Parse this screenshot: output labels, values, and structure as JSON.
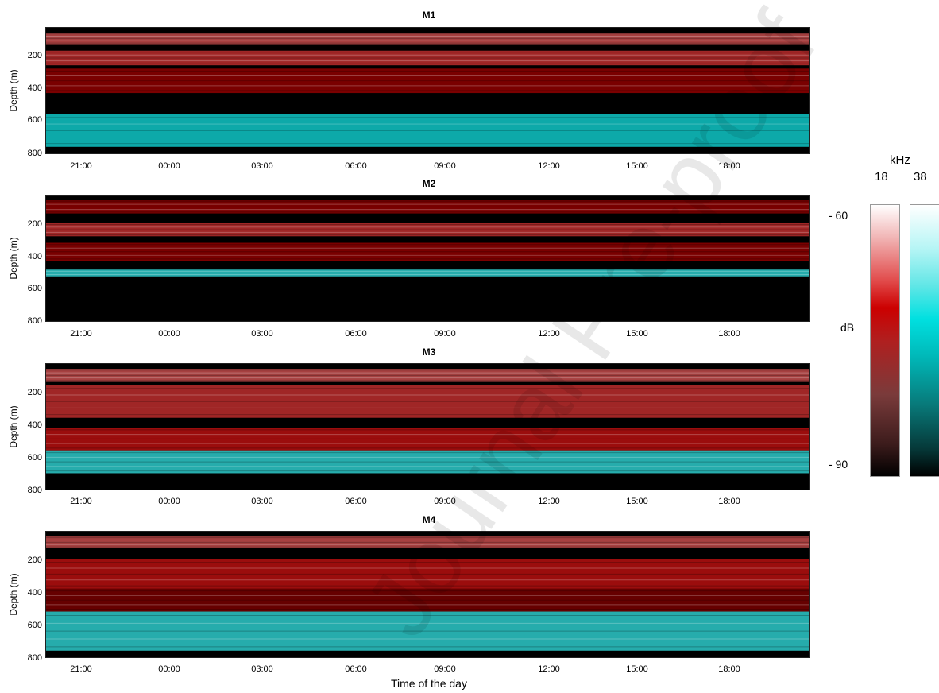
{
  "chart_data": [
    {
      "type": "heatmap",
      "title": "M1",
      "ylabel": "Depth (m)",
      "yticks": [
        "200",
        "400",
        "600",
        "800"
      ],
      "ylim": [
        800,
        30
      ],
      "xticks": [
        "21:00",
        "00:00",
        "03:00",
        "06:00",
        "09:00",
        "12:00",
        "15:00",
        "18:00"
      ],
      "bands": [
        {
          "channel": "18 kHz",
          "depth_top": 60,
          "depth_bottom": 130,
          "level_db": -70
        },
        {
          "channel": "18 kHz",
          "depth_top": 170,
          "depth_bottom": 260,
          "level_db": -72
        },
        {
          "channel": "18 kHz",
          "depth_top": 280,
          "depth_bottom": 430,
          "level_db": -78
        },
        {
          "channel": "38 kHz",
          "depth_top": 560,
          "depth_bottom": 760,
          "level_db": -74
        }
      ],
      "no_data_depth": [
        470,
        560
      ]
    },
    {
      "type": "heatmap",
      "title": "M2",
      "ylabel": "Depth (m)",
      "yticks": [
        "200",
        "400",
        "600",
        "800"
      ],
      "ylim": [
        800,
        30
      ],
      "xticks": [
        "21:00",
        "00:00",
        "03:00",
        "06:00",
        "09:00",
        "12:00",
        "15:00",
        "18:00"
      ],
      "bands": [
        {
          "channel": "18 kHz",
          "depth_top": 60,
          "depth_bottom": 140,
          "level_db": -78
        },
        {
          "channel": "18 kHz",
          "depth_top": 200,
          "depth_bottom": 280,
          "level_db": -72
        },
        {
          "channel": "18 kHz",
          "depth_top": 320,
          "depth_bottom": 430,
          "level_db": -78
        },
        {
          "channel": "38 kHz",
          "depth_top": 480,
          "depth_bottom": 530,
          "level_db": -72
        }
      ],
      "no_data_depth": [
        540,
        800
      ]
    },
    {
      "type": "heatmap",
      "title": "M3",
      "ylabel": "Depth (m)",
      "yticks": [
        "200",
        "400",
        "600",
        "800"
      ],
      "ylim": [
        800,
        30
      ],
      "xticks": [
        "21:00",
        "00:00",
        "03:00",
        "06:00",
        "09:00",
        "12:00",
        "15:00",
        "18:00"
      ],
      "bands": [
        {
          "channel": "18 kHz",
          "depth_top": 60,
          "depth_bottom": 140,
          "level_db": -70
        },
        {
          "channel": "18 kHz",
          "depth_top": 160,
          "depth_bottom": 360,
          "level_db": -72
        },
        {
          "channel": "18 kHz",
          "depth_top": 420,
          "depth_bottom": 560,
          "level_db": -74
        },
        {
          "channel": "38 kHz",
          "depth_top": 560,
          "depth_bottom": 700,
          "level_db": -72
        }
      ]
    },
    {
      "type": "heatmap",
      "title": "M4",
      "ylabel": "Depth (m)",
      "xlabel": "Time of the day",
      "yticks": [
        "200",
        "400",
        "600",
        "800"
      ],
      "ylim": [
        800,
        30
      ],
      "xticks": [
        "21:00",
        "00:00",
        "03:00",
        "06:00",
        "09:00",
        "12:00",
        "15:00",
        "18:00"
      ],
      "bands": [
        {
          "channel": "18 kHz",
          "depth_top": 60,
          "depth_bottom": 130,
          "level_db": -70
        },
        {
          "channel": "18 kHz",
          "depth_top": 200,
          "depth_bottom": 380,
          "level_db": -74
        },
        {
          "channel": "18 kHz",
          "depth_top": 380,
          "depth_bottom": 520,
          "level_db": -80
        },
        {
          "channel": "38 kHz",
          "depth_top": 520,
          "depth_bottom": 760,
          "level_db": -72
        }
      ]
    }
  ],
  "colorbar": {
    "unit": "kHz",
    "channels": [
      "18",
      "38"
    ],
    "quantity": "dB",
    "max_label": "- 60",
    "min_label": "- 90",
    "range_db": [
      -90,
      -60
    ],
    "colors": {
      "18": [
        "#000000",
        "#cc0000",
        "#ffffff"
      ],
      "38": [
        "#000000",
        "#00e0e0",
        "#ffffff"
      ]
    }
  },
  "watermark": "Journal Pre-proof"
}
